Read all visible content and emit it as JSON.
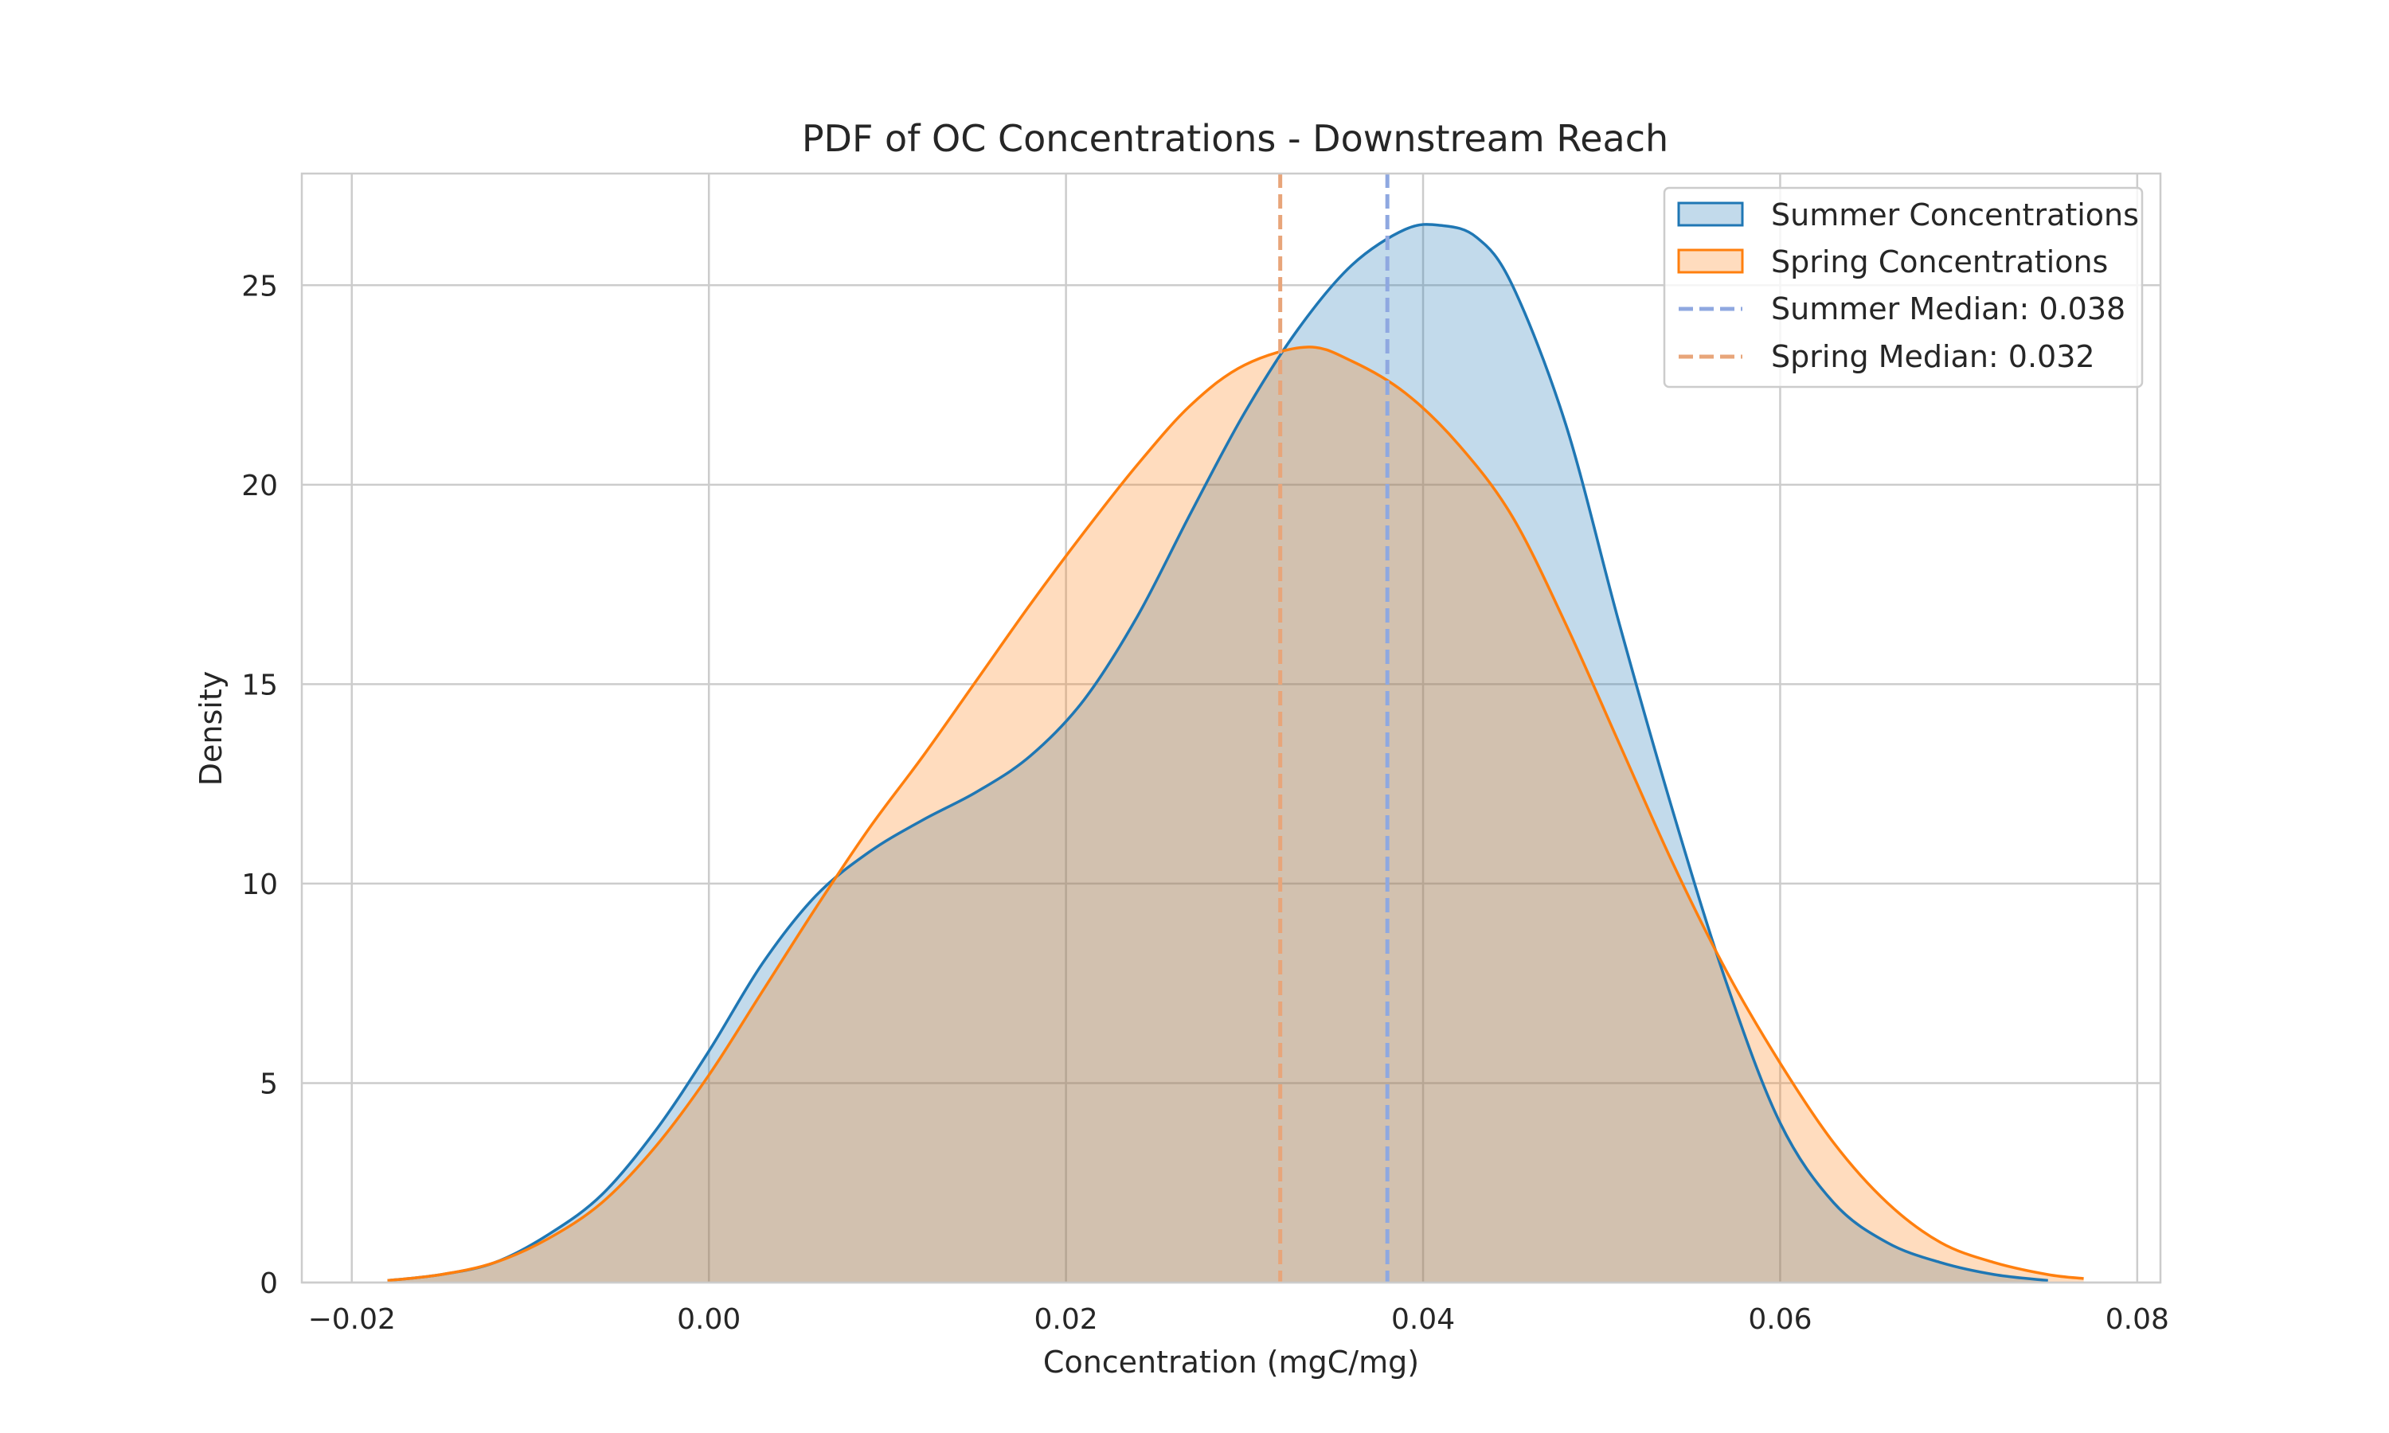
{
  "chart_data": {
    "type": "area",
    "title": "PDF of OC Concentrations - Downstream Reach",
    "xlabel": "Concentration (mgC/mg)",
    "ylabel": "Density",
    "xlim": [
      -0.0228,
      0.0813
    ],
    "ylim": [
      0,
      27.8
    ],
    "xticks": [
      -0.02,
      0.0,
      0.02,
      0.04,
      0.06,
      0.08
    ],
    "xtick_labels": [
      "−0.02",
      "0.00",
      "0.02",
      "0.04",
      "0.06",
      "0.08"
    ],
    "yticks": [
      0,
      5,
      10,
      15,
      20,
      25
    ],
    "ytick_labels": [
      "0",
      "5",
      "10",
      "15",
      "20",
      "25"
    ],
    "grid": true,
    "legend_position": "top-right",
    "series": [
      {
        "name": "Summer Concentrations",
        "color": "#1f77b4",
        "fill": "#1f77b4",
        "x": [
          -0.018,
          -0.015,
          -0.012,
          -0.009,
          -0.006,
          -0.003,
          0.0,
          0.003,
          0.006,
          0.009,
          0.012,
          0.015,
          0.018,
          0.021,
          0.024,
          0.027,
          0.03,
          0.033,
          0.036,
          0.039,
          0.041,
          0.043,
          0.045,
          0.048,
          0.051,
          0.054,
          0.057,
          0.06,
          0.063,
          0.066,
          0.069,
          0.072,
          0.075
        ],
        "y": [
          0.05,
          0.2,
          0.5,
          1.2,
          2.2,
          3.8,
          5.8,
          8.0,
          9.7,
          10.8,
          11.6,
          12.3,
          13.2,
          14.6,
          16.7,
          19.3,
          21.8,
          23.9,
          25.5,
          26.4,
          26.5,
          26.2,
          25.0,
          21.5,
          16.5,
          11.8,
          7.5,
          4.0,
          2.0,
          1.0,
          0.5,
          0.2,
          0.05
        ]
      },
      {
        "name": "Spring Concentrations",
        "color": "#ff7f0e",
        "fill": "#ff7f0e",
        "x": [
          -0.018,
          -0.015,
          -0.012,
          -0.009,
          -0.006,
          -0.003,
          0.0,
          0.003,
          0.006,
          0.009,
          0.012,
          0.015,
          0.018,
          0.021,
          0.024,
          0.027,
          0.03,
          0.0335,
          0.036,
          0.039,
          0.042,
          0.045,
          0.048,
          0.051,
          0.054,
          0.057,
          0.06,
          0.063,
          0.066,
          0.069,
          0.072,
          0.075,
          0.077
        ],
        "y": [
          0.05,
          0.2,
          0.5,
          1.1,
          2.0,
          3.4,
          5.2,
          7.3,
          9.4,
          11.4,
          13.2,
          15.1,
          17.0,
          18.8,
          20.5,
          22.0,
          23.0,
          23.45,
          23.1,
          22.3,
          21.0,
          19.2,
          16.5,
          13.5,
          10.5,
          7.8,
          5.5,
          3.5,
          2.0,
          1.0,
          0.5,
          0.2,
          0.1
        ]
      }
    ],
    "reference_lines": [
      {
        "name": "Summer Median: 0.038",
        "x": 0.038,
        "color": "#8fa8e0"
      },
      {
        "name": "Spring Median: 0.032",
        "x": 0.032,
        "color": "#e8a57a"
      }
    ]
  }
}
